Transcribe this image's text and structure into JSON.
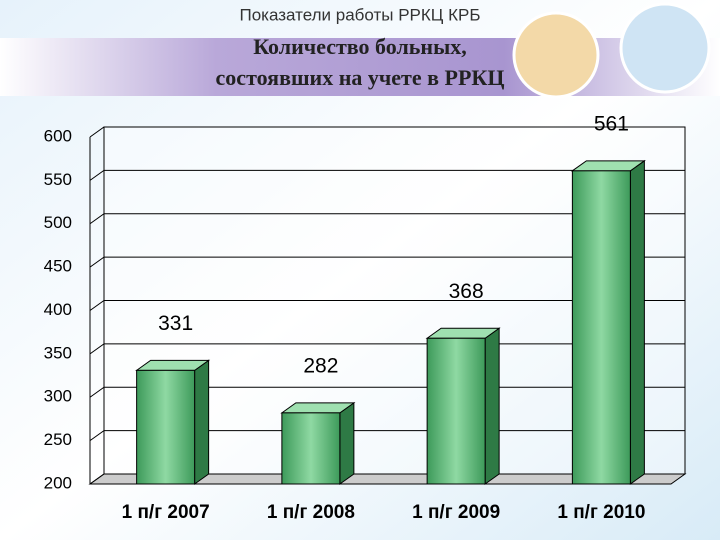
{
  "header": "Показатели работы РРКЦ КРБ",
  "chart_data": {
    "type": "bar",
    "title_lines": [
      "Количество больных,",
      "состоявших на учете в РРКЦ"
    ],
    "categories": [
      "1 п/г 2007",
      "1 п/г 2008",
      "1 п/г 2009",
      "1 п/г 2010"
    ],
    "values": [
      331,
      282,
      368,
      561
    ],
    "color": "#5cb877",
    "ylim": [
      200,
      600
    ],
    "yticks": [
      200,
      250,
      300,
      350,
      400,
      450,
      500,
      550,
      600
    ],
    "grid": true
  }
}
